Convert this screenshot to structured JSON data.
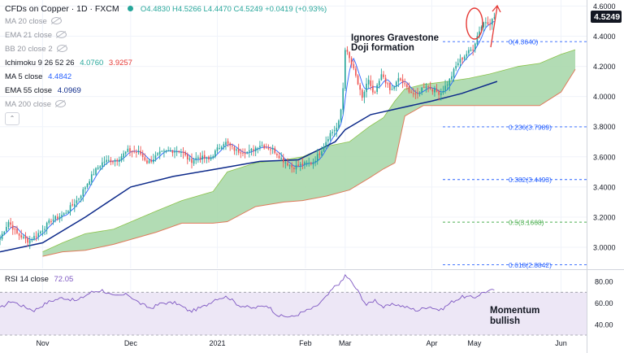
{
  "header": {
    "symbol": "CFDs on Copper · 1D · FXCM",
    "ohlc": "O4.4830 H4.5266 L4.4470 C4.5249 +0.0419 (+0.93%)"
  },
  "indicators": [
    {
      "label": "MA 20 close",
      "value": "",
      "hidden": true
    },
    {
      "label": "EMA 21 close",
      "value": "",
      "hidden": true
    },
    {
      "label": "BB 20 close 2",
      "value": "",
      "hidden": true
    },
    {
      "label": "Ichimoku 9 26 52 26",
      "value": "4.0760",
      "value2": "3.9257",
      "hidden": false
    },
    {
      "label": "MA 5 close",
      "value": "4.4842",
      "hidden": false
    },
    {
      "label": "EMA 55 close",
      "value": "4.0969",
      "hidden": false
    },
    {
      "label": "MA 200 close",
      "value": "",
      "hidden": true
    }
  ],
  "rsi_legend": {
    "label": "RSI 14 close",
    "value": "72.05"
  },
  "annotations": {
    "gravestone_line1": "Ignores Gravestone",
    "gravestone_line2": "Doji formation",
    "momentum_line1": "Momentum",
    "momentum_line2": "bullish"
  },
  "colors": {
    "up": "#26a69a",
    "down": "#ef5350",
    "ma5": "#2962ff",
    "ema55": "#0d2a8a",
    "cloud": "#a5d6a7",
    "cloud_edge": "#e07b5c",
    "rsi": "#7e57c2",
    "rsi_band": "#ede7f6",
    "fib": "#2962ff",
    "fib_mid": "#4caf50",
    "badge": "#131722",
    "ellipse": "#e53935"
  },
  "chart_data": {
    "type": "candlestick",
    "title": "CFDs on Copper · 1D · FXCM",
    "price_axis": {
      "ticks": [
        "4.6000",
        "4.4000",
        "4.2000",
        "4.0000",
        "3.8000",
        "3.6000",
        "3.4000",
        "3.2000",
        "3.0000"
      ],
      "tick_values": [
        4.6,
        4.4,
        4.2,
        4.0,
        3.8,
        3.6,
        3.4,
        3.2,
        3.0
      ],
      "range": [
        2.86,
        4.64
      ],
      "last_price": "4.5249",
      "last_value": 4.5249
    },
    "rsi_axis": {
      "ticks": [
        "80.00",
        "60.00",
        "40.00"
      ],
      "tick_values": [
        80,
        60,
        40
      ],
      "range": [
        30,
        90
      ],
      "band": [
        30,
        70
      ]
    },
    "x_axis": {
      "labels": [
        "Nov",
        "Dec",
        "2021",
        "Feb",
        "Mar",
        "Apr",
        "May",
        "Jun"
      ],
      "label_days": [
        30,
        92,
        153,
        215,
        243,
        304,
        334,
        395
      ],
      "range": [
        0,
        413
      ]
    },
    "price_waypoints": [
      [
        0,
        3.06
      ],
      [
        6,
        3.17
      ],
      [
        12,
        3.09
      ],
      [
        20,
        3.04
      ],
      [
        28,
        3.1
      ],
      [
        36,
        3.18
      ],
      [
        45,
        3.22
      ],
      [
        55,
        3.32
      ],
      [
        63,
        3.45
      ],
      [
        68,
        3.52
      ],
      [
        73,
        3.57
      ],
      [
        82,
        3.58
      ],
      [
        90,
        3.64
      ],
      [
        98,
        3.63
      ],
      [
        104,
        3.56
      ],
      [
        112,
        3.62
      ],
      [
        119,
        3.64
      ],
      [
        127,
        3.64
      ],
      [
        134,
        3.57
      ],
      [
        140,
        3.6
      ],
      [
        147,
        3.58
      ],
      [
        153,
        3.65
      ],
      [
        158,
        3.7
      ],
      [
        166,
        3.64
      ],
      [
        175,
        3.63
      ],
      [
        183,
        3.68
      ],
      [
        192,
        3.65
      ],
      [
        199,
        3.58
      ],
      [
        206,
        3.53
      ],
      [
        213,
        3.55
      ],
      [
        220,
        3.56
      ],
      [
        226,
        3.64
      ],
      [
        232,
        3.75
      ],
      [
        238,
        3.8
      ],
      [
        241,
        3.97
      ],
      [
        243,
        4.32
      ],
      [
        246,
        4.25
      ],
      [
        250,
        4.15
      ],
      [
        255,
        3.98
      ],
      [
        259,
        4.12
      ],
      [
        263,
        4.0
      ],
      [
        269,
        4.15
      ],
      [
        275,
        4.03
      ],
      [
        281,
        4.12
      ],
      [
        287,
        4.05
      ],
      [
        293,
        4.0
      ],
      [
        299,
        4.08
      ],
      [
        304,
        4.05
      ],
      [
        310,
        4.02
      ],
      [
        316,
        4.1
      ],
      [
        322,
        4.22
      ],
      [
        328,
        4.28
      ],
      [
        333,
        4.32
      ],
      [
        337,
        4.43
      ],
      [
        341,
        4.5
      ],
      [
        345,
        4.49
      ],
      [
        348,
        4.5249
      ]
    ],
    "ma5_period": 5,
    "ema55_waypoints": [
      [
        0,
        2.97
      ],
      [
        30,
        3.03
      ],
      [
        60,
        3.2
      ],
      [
        92,
        3.4
      ],
      [
        122,
        3.47
      ],
      [
        153,
        3.52
      ],
      [
        183,
        3.57
      ],
      [
        210,
        3.58
      ],
      [
        236,
        3.7
      ],
      [
        243,
        3.78
      ],
      [
        261,
        3.88
      ],
      [
        280,
        3.92
      ],
      [
        304,
        3.97
      ],
      [
        325,
        4.02
      ],
      [
        350,
        4.1
      ]
    ],
    "cloud_span_a": [
      [
        30,
        2.97
      ],
      [
        44,
        3.03
      ],
      [
        60,
        3.09
      ],
      [
        80,
        3.12
      ],
      [
        110,
        3.24
      ],
      [
        128,
        3.31
      ],
      [
        150,
        3.37
      ],
      [
        160,
        3.5
      ],
      [
        180,
        3.56
      ],
      [
        200,
        3.58
      ],
      [
        213,
        3.6
      ],
      [
        230,
        3.67
      ],
      [
        246,
        3.7
      ],
      [
        260,
        3.8
      ],
      [
        270,
        3.86
      ],
      [
        278,
        3.97
      ],
      [
        285,
        4.05
      ],
      [
        298,
        4.08
      ],
      [
        315,
        4.1
      ],
      [
        330,
        4.12
      ],
      [
        345,
        4.15
      ],
      [
        365,
        4.2
      ],
      [
        380,
        4.22
      ],
      [
        395,
        4.28
      ],
      [
        405,
        4.31
      ]
    ],
    "cloud_span_b": [
      [
        30,
        2.94
      ],
      [
        44,
        2.97
      ],
      [
        60,
        2.98
      ],
      [
        80,
        3.02
      ],
      [
        110,
        3.1
      ],
      [
        128,
        3.16
      ],
      [
        150,
        3.16
      ],
      [
        160,
        3.17
      ],
      [
        180,
        3.27
      ],
      [
        200,
        3.3
      ],
      [
        213,
        3.31
      ],
      [
        230,
        3.34
      ],
      [
        246,
        3.38
      ],
      [
        260,
        3.46
      ],
      [
        270,
        3.52
      ],
      [
        278,
        3.56
      ],
      [
        285,
        3.87
      ],
      [
        298,
        3.94
      ],
      [
        315,
        3.94
      ],
      [
        330,
        3.94
      ],
      [
        345,
        3.94
      ],
      [
        365,
        3.94
      ],
      [
        380,
        3.94
      ],
      [
        395,
        4.03
      ],
      [
        405,
        4.18
      ]
    ],
    "rsi_waypoints": [
      [
        0,
        55
      ],
      [
        8,
        62
      ],
      [
        16,
        57
      ],
      [
        24,
        53
      ],
      [
        34,
        61
      ],
      [
        44,
        65
      ],
      [
        54,
        62
      ],
      [
        64,
        70
      ],
      [
        72,
        72
      ],
      [
        80,
        66
      ],
      [
        90,
        68
      ],
      [
        98,
        60
      ],
      [
        106,
        55
      ],
      [
        114,
        60
      ],
      [
        124,
        60
      ],
      [
        134,
        52
      ],
      [
        144,
        57
      ],
      [
        152,
        64
      ],
      [
        160,
        66
      ],
      [
        168,
        58
      ],
      [
        178,
        55
      ],
      [
        188,
        58
      ],
      [
        196,
        48
      ],
      [
        206,
        47
      ],
      [
        214,
        52
      ],
      [
        222,
        56
      ],
      [
        230,
        66
      ],
      [
        236,
        76
      ],
      [
        241,
        80
      ],
      [
        243,
        86
      ],
      [
        246,
        82
      ],
      [
        252,
        71
      ],
      [
        258,
        58
      ],
      [
        264,
        63
      ],
      [
        270,
        56
      ],
      [
        278,
        59
      ],
      [
        286,
        56
      ],
      [
        294,
        53
      ],
      [
        302,
        57
      ],
      [
        310,
        53
      ],
      [
        318,
        61
      ],
      [
        326,
        66
      ],
      [
        334,
        65
      ],
      [
        340,
        70
      ],
      [
        344,
        71
      ],
      [
        348,
        72.05
      ]
    ],
    "fibonacci": [
      {
        "ratio": "0",
        "price": "(4.3640)",
        "value": 4.364
      },
      {
        "ratio": "0.236",
        "price": "(3.7989)",
        "value": 3.7989
      },
      {
        "ratio": "0.382",
        "price": "(3.4493)",
        "value": 3.4493
      },
      {
        "ratio": "0.5",
        "price": "(3.1668)",
        "value": 3.1668
      },
      {
        "ratio": "0.618",
        "price": "(2.8842)",
        "value": 2.8842
      }
    ]
  }
}
